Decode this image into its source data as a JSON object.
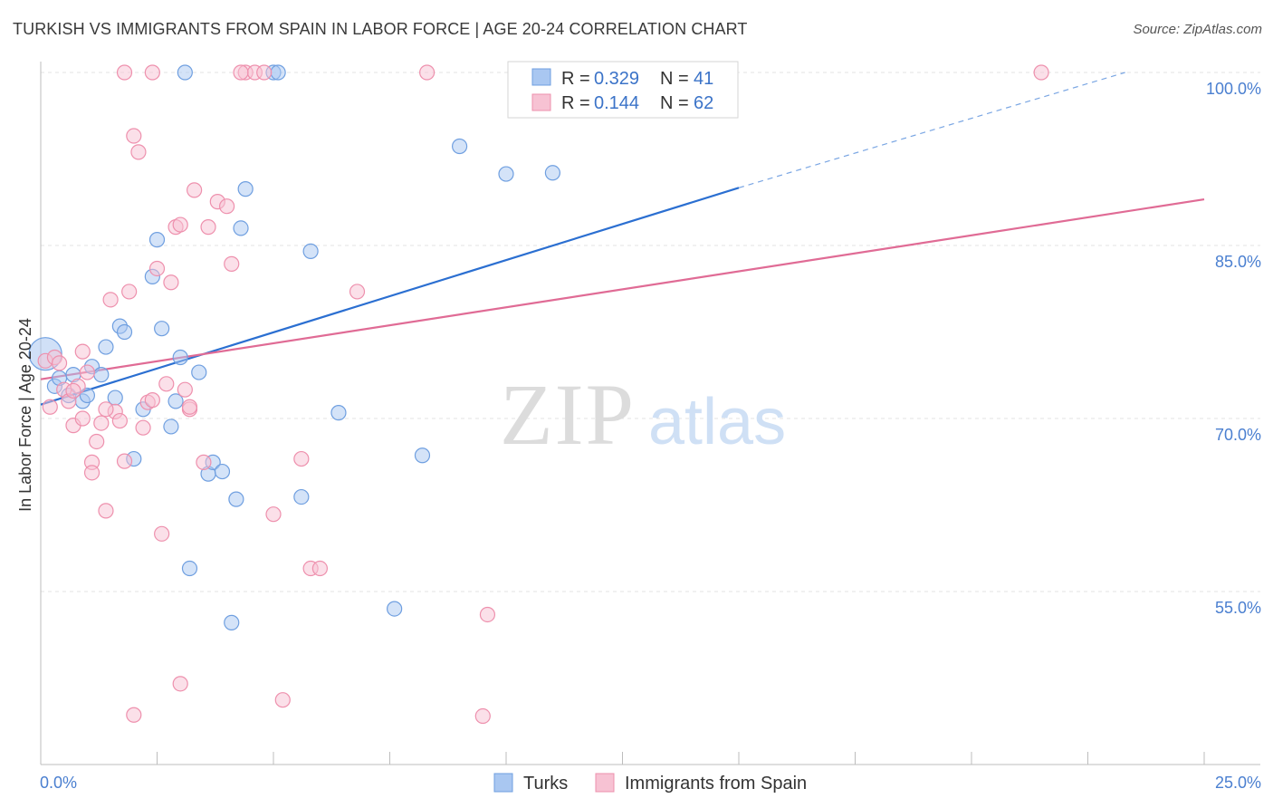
{
  "header": {
    "title": "TURKISH VS IMMIGRANTS FROM SPAIN IN LABOR FORCE | AGE 20-24 CORRELATION CHART",
    "source": "Source: ZipAtlas.com"
  },
  "watermark": {
    "zip": "ZIP",
    "atlas": "atlas"
  },
  "legend": {
    "rows": [
      {
        "r_label": "R =",
        "r_value": "0.329",
        "n_label": "N =",
        "n_value": "41",
        "color": "#a9c7f1",
        "stroke": "#6f9fe0"
      },
      {
        "r_label": "R =",
        "r_value": "0.144",
        "n_label": "N =",
        "n_value": "62",
        "color": "#f7c2d3",
        "stroke": "#ee90ad"
      }
    ]
  },
  "bottom_legend": {
    "items": [
      "Turks",
      "Immigrants from Spain"
    ]
  },
  "chart_data": {
    "type": "scatter",
    "ylabel": "In Labor Force | Age 20-24",
    "x_ticks": [
      "0.0%",
      "25.0%"
    ],
    "y_ticks": [
      "100.0%",
      "85.0%",
      "70.0%",
      "55.0%"
    ],
    "xlim": [
      0,
      25
    ],
    "ylim": [
      40,
      100
    ],
    "grid": true,
    "series": [
      {
        "name": "Turks",
        "color": "#6f9fe0",
        "fill": "#a9c7f1",
        "trend": {
          "x0": 0,
          "y0": 71.2,
          "x1": 15,
          "y1": 90,
          "dash_to_x": 23.3,
          "dash_to_y": 100,
          "color": "#2b6fd1"
        },
        "points": [
          [
            0.1,
            75.6
          ],
          [
            0.3,
            72.8
          ],
          [
            0.4,
            73.5
          ],
          [
            0.6,
            72
          ],
          [
            0.7,
            73.8
          ],
          [
            0.9,
            71.5
          ],
          [
            1.0,
            72
          ],
          [
            1.1,
            74.5
          ],
          [
            1.3,
            73.8
          ],
          [
            1.4,
            76.2
          ],
          [
            1.6,
            71.8
          ],
          [
            1.7,
            78
          ],
          [
            1.8,
            77.5
          ],
          [
            2.0,
            66.5
          ],
          [
            2.2,
            70.8
          ],
          [
            2.4,
            82.3
          ],
          [
            2.5,
            85.5
          ],
          [
            2.6,
            77.8
          ],
          [
            2.8,
            69.3
          ],
          [
            2.9,
            71.5
          ],
          [
            3.0,
            75.3
          ],
          [
            3.2,
            57
          ],
          [
            3.4,
            74
          ],
          [
            3.6,
            65.2
          ],
          [
            3.7,
            66.2
          ],
          [
            3.9,
            65.4
          ],
          [
            4.1,
            52.3
          ],
          [
            4.2,
            63
          ],
          [
            4.3,
            86.5
          ],
          [
            4.4,
            89.9
          ],
          [
            5.0,
            100
          ],
          [
            5.6,
            63.2
          ],
          [
            5.8,
            84.5
          ],
          [
            6.4,
            70.5
          ],
          [
            7.6,
            53.5
          ],
          [
            8.2,
            66.8
          ],
          [
            9.0,
            93.6
          ],
          [
            10.0,
            91.2
          ],
          [
            11.0,
            91.3
          ],
          [
            3.1,
            100
          ],
          [
            5.1,
            100
          ]
        ]
      },
      {
        "name": "Immigrants from Spain",
        "color": "#ee90ad",
        "fill": "#f7c2d3",
        "trend": {
          "x0": 0,
          "y0": 73.4,
          "x1": 25,
          "y1": 89,
          "color": "#e06b95"
        },
        "points": [
          [
            0.1,
            75
          ],
          [
            0.2,
            71
          ],
          [
            0.3,
            75.3
          ],
          [
            0.4,
            74.8
          ],
          [
            0.5,
            72.5
          ],
          [
            0.6,
            71.5
          ],
          [
            0.7,
            69.4
          ],
          [
            0.8,
            72.8
          ],
          [
            0.9,
            75.8
          ],
          [
            1.0,
            74
          ],
          [
            1.1,
            66.2
          ],
          [
            1.2,
            68
          ],
          [
            1.3,
            69.6
          ],
          [
            1.4,
            62
          ],
          [
            1.5,
            80.3
          ],
          [
            1.6,
            70.6
          ],
          [
            1.7,
            69.8
          ],
          [
            1.8,
            66.3
          ],
          [
            1.9,
            81
          ],
          [
            2.0,
            94.5
          ],
          [
            2.1,
            93.1
          ],
          [
            2.2,
            69.2
          ],
          [
            2.3,
            71.4
          ],
          [
            2.4,
            71.6
          ],
          [
            2.5,
            83
          ],
          [
            2.6,
            60
          ],
          [
            2.7,
            73
          ],
          [
            2.8,
            81.8
          ],
          [
            2.9,
            86.6
          ],
          [
            3.0,
            86.8
          ],
          [
            3.1,
            72.5
          ],
          [
            3.2,
            70.8
          ],
          [
            3.3,
            89.8
          ],
          [
            3.5,
            66.2
          ],
          [
            3.6,
            86.6
          ],
          [
            3.8,
            88.8
          ],
          [
            4.0,
            88.4
          ],
          [
            4.1,
            83.4
          ],
          [
            4.4,
            100
          ],
          [
            4.6,
            100
          ],
          [
            4.8,
            100
          ],
          [
            5.0,
            61.7
          ],
          [
            5.2,
            45.6
          ],
          [
            5.6,
            66.5
          ],
          [
            5.8,
            57
          ],
          [
            6.0,
            57
          ],
          [
            6.8,
            81
          ],
          [
            8.3,
            100
          ],
          [
            9.5,
            44.2
          ],
          [
            9.6,
            53
          ],
          [
            10.5,
            100
          ],
          [
            21.5,
            100
          ],
          [
            2.0,
            44.3
          ],
          [
            3.0,
            47
          ],
          [
            1.8,
            100
          ],
          [
            4.3,
            100
          ],
          [
            3.2,
            71
          ],
          [
            1.4,
            70.8
          ],
          [
            0.7,
            72.4
          ],
          [
            1.1,
            65.3
          ],
          [
            2.4,
            100
          ],
          [
            0.9,
            70
          ]
        ]
      }
    ]
  }
}
